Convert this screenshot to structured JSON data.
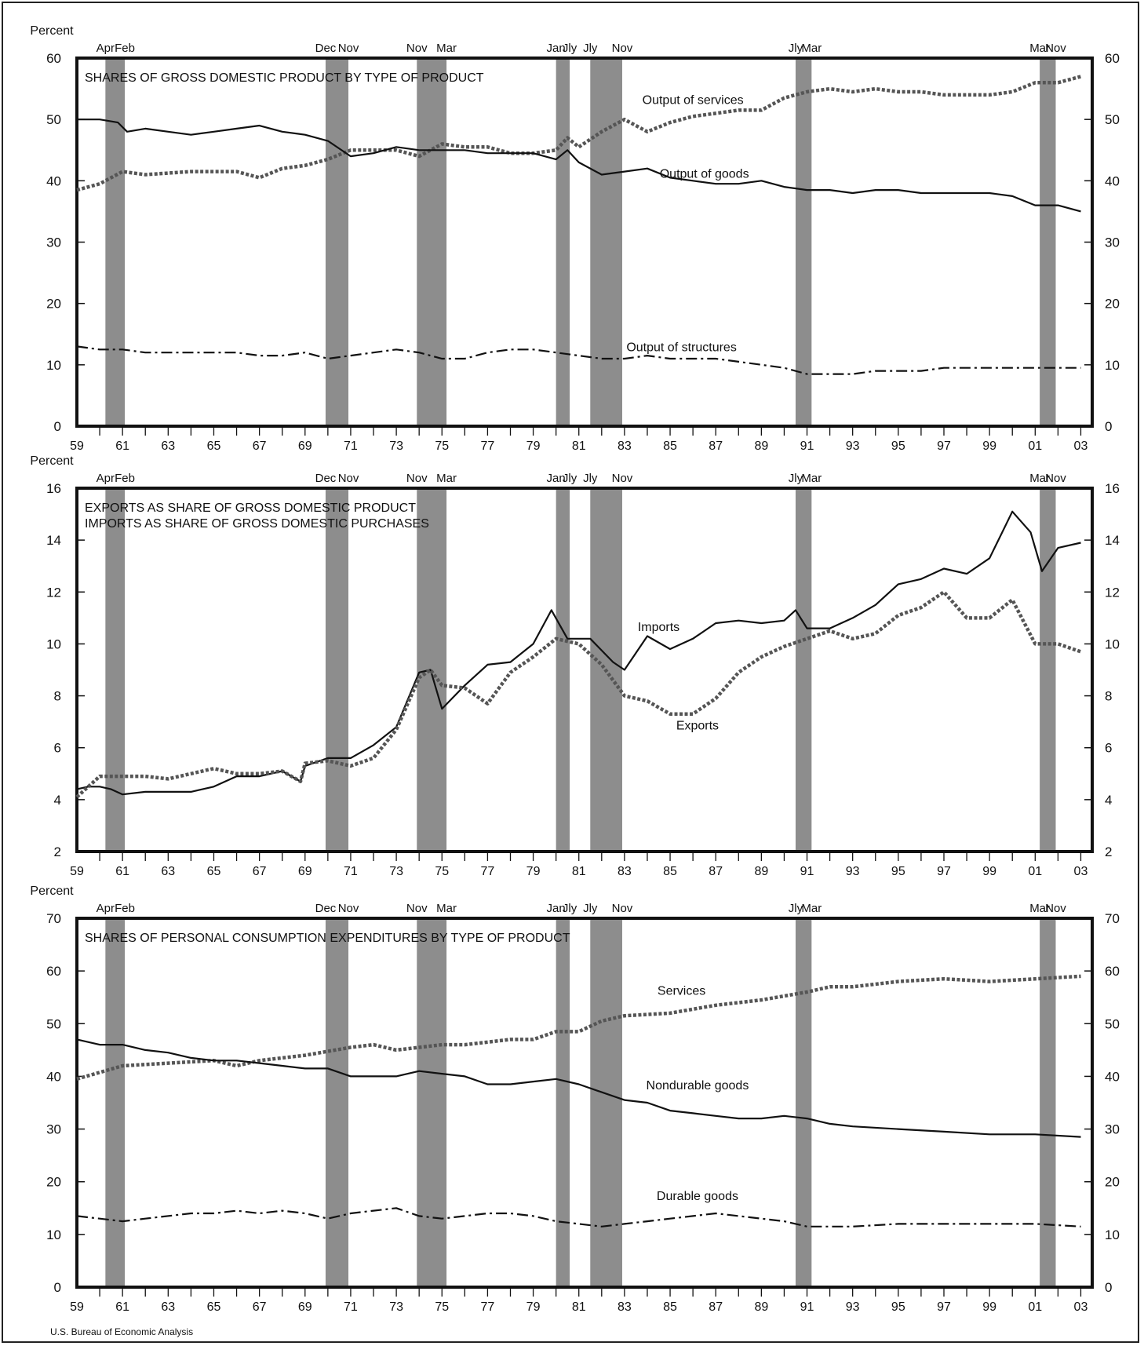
{
  "source": "U.S. Bureau of Economic Analysis",
  "recession_labels": [
    {
      "year": 1960.25,
      "label": "Apr"
    },
    {
      "year": 1961.1,
      "label": "Feb"
    },
    {
      "year": 1969.9,
      "label": "Dec"
    },
    {
      "year": 1970.9,
      "label": "Nov"
    },
    {
      "year": 1973.9,
      "label": "Nov"
    },
    {
      "year": 1975.2,
      "label": "Mar"
    },
    {
      "year": 1980.0,
      "label": "Jan"
    },
    {
      "year": 1980.6,
      "label": "Jly"
    },
    {
      "year": 1981.5,
      "label": "Jly"
    },
    {
      "year": 1982.9,
      "label": "Nov"
    },
    {
      "year": 1990.5,
      "label": "Jly"
    },
    {
      "year": 1991.2,
      "label": "Mar"
    },
    {
      "year": 2001.2,
      "label": "Mar"
    },
    {
      "year": 2001.9,
      "label": "Nov"
    }
  ],
  "recessions": [
    [
      1960.25,
      1961.1
    ],
    [
      1969.9,
      1970.9
    ],
    [
      1973.9,
      1975.2
    ],
    [
      1980.0,
      1980.6
    ],
    [
      1981.5,
      1982.9
    ],
    [
      1990.5,
      1991.2
    ],
    [
      2001.2,
      2001.9
    ]
  ],
  "chart_data": [
    {
      "type": "line",
      "title": "SHARES OF GROSS DOMESTIC PRODUCT BY TYPE OF PRODUCT",
      "ylabel": "Percent",
      "ylim": [
        0,
        60
      ],
      "yticks": [
        "0",
        "10",
        "20",
        "30",
        "40",
        "50",
        "60"
      ],
      "yticks_right": [
        "0",
        "10",
        "20",
        "30",
        "40",
        "50",
        "60"
      ],
      "xlim": [
        1959,
        2003.5
      ],
      "xticks": [
        "59",
        "61",
        "63",
        "65",
        "67",
        "69",
        "71",
        "73",
        "75",
        "77",
        "79",
        "81",
        "83",
        "85",
        "87",
        "89",
        "91",
        "93",
        "95",
        "97",
        "99",
        "01",
        "03"
      ],
      "series": [
        {
          "name": "Output of services",
          "style": "dotted",
          "x": [
            1959,
            1960,
            1961,
            1962,
            1964,
            1966,
            1967,
            1968,
            1969,
            1970,
            1971,
            1972,
            1973,
            1974,
            1975,
            1976,
            1977,
            1978,
            1979,
            1980,
            1980.5,
            1981,
            1982,
            1983,
            1984,
            1985,
            1986,
            1987,
            1988,
            1989,
            1990,
            1991,
            1992,
            1993,
            1994,
            1995,
            1996,
            1997,
            1998,
            1999,
            2000,
            2001,
            2002,
            2003
          ],
          "y": [
            38.5,
            39.5,
            41.5,
            41,
            41.5,
            41.5,
            40.5,
            42,
            42.5,
            43.5,
            45,
            45,
            45,
            44,
            46,
            45.5,
            45.5,
            44.5,
            44.5,
            45,
            47,
            45.5,
            48,
            50,
            48,
            49.5,
            50.5,
            51,
            51.5,
            51.5,
            53.5,
            54.5,
            55,
            54.5,
            55,
            54.5,
            54.5,
            54,
            54,
            54,
            54.5,
            56,
            56,
            57
          ]
        },
        {
          "name": "Output of goods",
          "style": "solid",
          "x": [
            1959,
            1960,
            1960.8,
            1961.2,
            1962,
            1963,
            1964,
            1965,
            1966,
            1967,
            1968,
            1969,
            1970,
            1971,
            1972,
            1973,
            1974,
            1975,
            1976,
            1977,
            1978,
            1979,
            1980,
            1980.5,
            1981,
            1982,
            1983,
            1984,
            1985,
            1986,
            1987,
            1988,
            1989,
            1990,
            1991,
            1992,
            1993,
            1994,
            1995,
            1996,
            1997,
            1998,
            1999,
            2000,
            2001,
            2002,
            2003
          ],
          "y": [
            50,
            50,
            49.5,
            48,
            48.5,
            48,
            47.5,
            48,
            48.5,
            49,
            48,
            47.5,
            46.5,
            44,
            44.5,
            45.5,
            45,
            45,
            45,
            44.5,
            44.5,
            44.5,
            43.5,
            45,
            43,
            41,
            41.5,
            42,
            40.5,
            40,
            39.5,
            39.5,
            40,
            39,
            38.5,
            38.5,
            38,
            38.5,
            38.5,
            38,
            38,
            38,
            38,
            37.5,
            36,
            36,
            35
          ]
        },
        {
          "name": "Output of structures",
          "style": "dashdot",
          "x": [
            1959,
            1960,
            1961,
            1962,
            1964,
            1966,
            1967,
            1968,
            1969,
            1970,
            1971,
            1972,
            1973,
            1974,
            1975,
            1976,
            1977,
            1978,
            1979,
            1980,
            1981,
            1982,
            1983,
            1984,
            1985,
            1986,
            1987,
            1988,
            1989,
            1990,
            1991,
            1992,
            1993,
            1994,
            1995,
            1996,
            1997,
            1998,
            1999,
            2000,
            2001,
            2002,
            2003
          ],
          "y": [
            13,
            12.5,
            12.5,
            12,
            12,
            12,
            11.5,
            11.5,
            12,
            11,
            11.5,
            12,
            12.5,
            12,
            11,
            11,
            12,
            12.5,
            12.5,
            12,
            11.5,
            11,
            11,
            11.5,
            11,
            11,
            11,
            10.5,
            10,
            9.5,
            8.5,
            8.5,
            8.5,
            9,
            9,
            9,
            9.5,
            9.5,
            9.5,
            9.5,
            9.5,
            9.5,
            9.5
          ]
        }
      ],
      "annotations": [
        {
          "text": "Output of services",
          "x": 1986,
          "y": 52.5
        },
        {
          "text": "Output of goods",
          "x": 1986.5,
          "y": 40.5
        },
        {
          "text": "Output of structures",
          "x": 1985.5,
          "y": 12.2
        }
      ]
    },
    {
      "type": "line",
      "title": "EXPORTS AS SHARE OF GROSS DOMESTIC PRODUCT",
      "subtitle": "IMPORTS AS SHARE OF GROSS DOMESTIC PURCHASES",
      "ylabel": "Percent",
      "ylim": [
        2,
        16
      ],
      "yticks": [
        "2",
        "4",
        "6",
        "8",
        "10",
        "12",
        "14",
        "16"
      ],
      "yticks_right": [
        "2",
        "4",
        "6",
        "8",
        "10",
        "12",
        "14",
        "16"
      ],
      "xlim": [
        1959,
        2003.5
      ],
      "xticks": [
        "59",
        "61",
        "63",
        "65",
        "67",
        "69",
        "71",
        "73",
        "75",
        "77",
        "79",
        "81",
        "83",
        "85",
        "87",
        "89",
        "91",
        "93",
        "95",
        "97",
        "99",
        "01",
        "03"
      ],
      "series": [
        {
          "name": "Imports",
          "style": "solid",
          "x": [
            1959,
            1959.5,
            1960,
            1960.5,
            1961,
            1962,
            1963,
            1964,
            1965,
            1966,
            1967,
            1968,
            1968.8,
            1969,
            1970,
            1971,
            1972,
            1973,
            1974,
            1974.5,
            1975,
            1976,
            1977,
            1978,
            1979,
            1979.8,
            1980.5,
            1981.5,
            1982.5,
            1983,
            1984,
            1985,
            1986,
            1987,
            1988,
            1989,
            1990,
            1990.5,
            1991,
            1992,
            1993,
            1994,
            1995,
            1996,
            1997,
            1998,
            1999,
            2000,
            2000.8,
            2001.3,
            2002,
            2003
          ],
          "y": [
            4.4,
            4.5,
            4.5,
            4.4,
            4.2,
            4.3,
            4.3,
            4.3,
            4.5,
            4.9,
            4.9,
            5.1,
            4.7,
            5.3,
            5.6,
            5.6,
            6.1,
            6.8,
            8.9,
            9.0,
            7.5,
            8.4,
            9.2,
            9.3,
            10.0,
            11.3,
            10.2,
            10.2,
            9.3,
            9.0,
            10.3,
            9.8,
            10.2,
            10.8,
            10.9,
            10.8,
            10.9,
            11.3,
            10.6,
            10.6,
            11.0,
            11.5,
            12.3,
            12.5,
            12.9,
            12.7,
            13.3,
            15.1,
            14.3,
            12.8,
            13.7,
            13.9
          ]
        },
        {
          "name": "Exports",
          "style": "dotted",
          "x": [
            1959,
            1960,
            1961,
            1962,
            1963,
            1964,
            1965,
            1966,
            1967,
            1968,
            1968.8,
            1969,
            1970,
            1971,
            1972,
            1973,
            1974,
            1974.5,
            1975,
            1976,
            1977,
            1978,
            1979,
            1980,
            1981,
            1982,
            1983,
            1984,
            1985,
            1986,
            1987,
            1988,
            1989,
            1990,
            1991,
            1992,
            1993,
            1994,
            1995,
            1996,
            1997,
            1998,
            1999,
            2000,
            2001,
            2002,
            2003
          ],
          "y": [
            4.1,
            4.9,
            4.9,
            4.9,
            4.8,
            5.0,
            5.2,
            5.0,
            5.0,
            5.1,
            4.7,
            5.4,
            5.5,
            5.3,
            5.6,
            6.7,
            8.7,
            9.0,
            8.4,
            8.3,
            7.7,
            8.9,
            9.5,
            10.2,
            10.0,
            9.2,
            8.0,
            7.8,
            7.3,
            7.3,
            7.9,
            8.9,
            9.5,
            9.9,
            10.2,
            10.5,
            10.2,
            10.4,
            11.1,
            11.4,
            12.0,
            11.0,
            11.0,
            11.7,
            10.0,
            10.0,
            9.7
          ]
        }
      ],
      "annotations": [
        {
          "text": "Imports",
          "x": 1984.5,
          "y": 10.5
        },
        {
          "text": "Exports",
          "x": 1986.2,
          "y": 6.7
        }
      ]
    },
    {
      "type": "line",
      "title": "SHARES OF PERSONAL CONSUMPTION EXPENDITURES BY TYPE OF PRODUCT",
      "ylabel": "Percent",
      "ylim": [
        0,
        70
      ],
      "yticks": [
        "0",
        "10",
        "20",
        "30",
        "40",
        "50",
        "60",
        "70"
      ],
      "yticks_right": [
        "0",
        "10",
        "20",
        "30",
        "40",
        "50",
        "60",
        "70"
      ],
      "xlim": [
        1959,
        2003.5
      ],
      "xticks": [
        "59",
        "61",
        "63",
        "65",
        "67",
        "69",
        "71",
        "73",
        "75",
        "77",
        "79",
        "81",
        "83",
        "85",
        "87",
        "89",
        "91",
        "93",
        "95",
        "97",
        "99",
        "01",
        "03"
      ],
      "series": [
        {
          "name": "Services",
          "style": "dotted",
          "x": [
            1959,
            1961,
            1963,
            1965,
            1966,
            1967,
            1969,
            1971,
            1972,
            1973,
            1974,
            1975,
            1976,
            1977,
            1978,
            1979,
            1980,
            1981,
            1982,
            1983,
            1985,
            1987,
            1989,
            1991,
            1992,
            1993,
            1995,
            1997,
            1999,
            2001,
            2003
          ],
          "y": [
            39.5,
            42,
            42.5,
            43,
            42,
            43,
            44,
            45.5,
            46,
            45,
            45.5,
            46,
            46,
            46.5,
            47,
            47,
            48.5,
            48.5,
            50.5,
            51.5,
            52,
            53.5,
            54.5,
            56,
            57,
            57,
            58,
            58.5,
            58,
            58.5,
            59
          ]
        },
        {
          "name": "Nondurable goods",
          "style": "solid",
          "x": [
            1959,
            1960,
            1961,
            1962,
            1963,
            1964,
            1965,
            1966,
            1967,
            1968,
            1969,
            1970,
            1971,
            1972,
            1973,
            1974,
            1975,
            1976,
            1977,
            1978,
            1979,
            1980,
            1981,
            1982,
            1983,
            1984,
            1985,
            1986,
            1987,
            1988,
            1989,
            1990,
            1991,
            1992,
            1993,
            1995,
            1997,
            1999,
            2001,
            2003
          ],
          "y": [
            47,
            46,
            46,
            45,
            44.5,
            43.5,
            43,
            43,
            42.5,
            42,
            41.5,
            41.5,
            40,
            40,
            40,
            41,
            40.5,
            40,
            38.5,
            38.5,
            39,
            39.5,
            38.5,
            37,
            35.5,
            35,
            33.5,
            33,
            32.5,
            32,
            32,
            32.5,
            32,
            31,
            30.5,
            30,
            29.5,
            29,
            29,
            28.5
          ]
        },
        {
          "name": "Durable goods",
          "style": "dashdot",
          "x": [
            1959,
            1960,
            1961,
            1962,
            1964,
            1965,
            1966,
            1967,
            1968,
            1969,
            1970,
            1971,
            1972,
            1973,
            1974,
            1975,
            1976,
            1977,
            1978,
            1979,
            1980,
            1981,
            1982,
            1983,
            1984,
            1985,
            1986,
            1987,
            1988,
            1989,
            1990,
            1991,
            1993,
            1995,
            1997,
            1999,
            2001,
            2003
          ],
          "y": [
            13.5,
            13,
            12.5,
            13,
            14,
            14,
            14.5,
            14,
            14.5,
            14,
            13,
            14,
            14.5,
            15,
            13.5,
            13,
            13.5,
            14,
            14,
            13.5,
            12.5,
            12,
            11.5,
            12,
            12.5,
            13,
            13.5,
            14,
            13.5,
            13,
            12.5,
            11.5,
            11.5,
            12,
            12,
            12,
            12,
            11.5
          ]
        }
      ],
      "annotations": [
        {
          "text": "Services",
          "x": 1985.5,
          "y": 55.5
        },
        {
          "text": "Nondurable goods",
          "x": 1986.2,
          "y": 37.5
        },
        {
          "text": "Durable goods",
          "x": 1986.2,
          "y": 16.5
        }
      ]
    }
  ]
}
